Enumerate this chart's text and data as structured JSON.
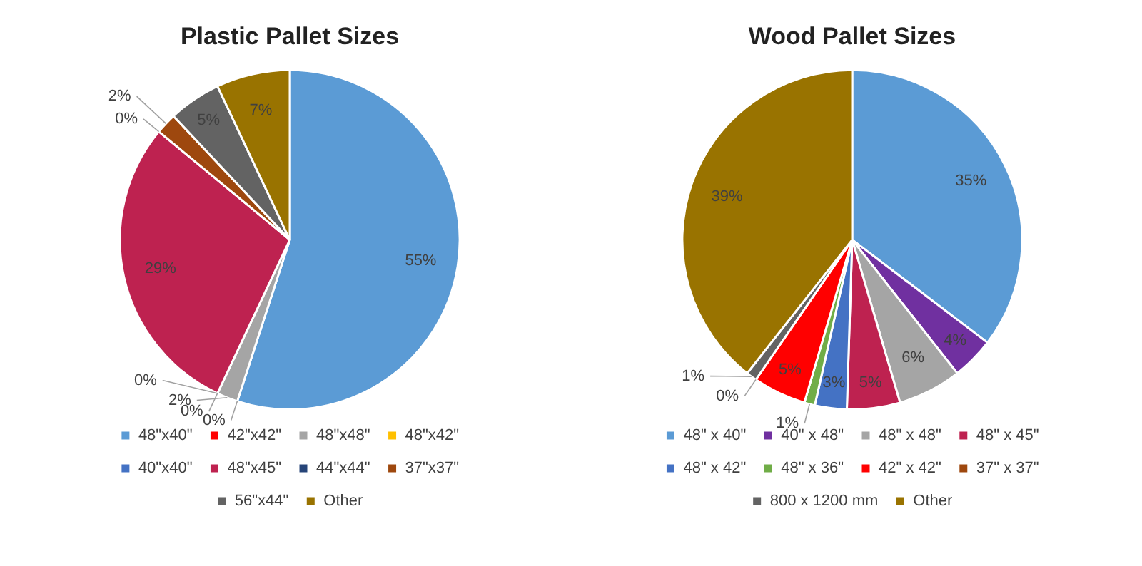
{
  "chart_data": [
    {
      "type": "pie",
      "title": "Plastic Pallet Sizes",
      "categories": [
        "48\"x40\"",
        "42\"x42\"",
        "48\"x48\"",
        "48\"x42\"",
        "40\"x40\"",
        "48\"x45\"",
        "44\"x44\"",
        "37\"x37\"",
        "56\"x44\"",
        "Other"
      ],
      "values": [
        55,
        0,
        2,
        0,
        0,
        29,
        0,
        2,
        5,
        7
      ],
      "value_labels": [
        "55%",
        "0%",
        "2%",
        "0%",
        "0%",
        "29%",
        "0%",
        "2%",
        "5%",
        "7%"
      ],
      "colors": [
        "#5b9bd5",
        "#ff0000",
        "#a5a5a5",
        "#ffc000",
        "#4472c4",
        "#be2250",
        "#264478",
        "#9e480e",
        "#636363",
        "#997300"
      ],
      "legend": "bottom"
    },
    {
      "type": "pie",
      "title": "Wood Pallet Sizes",
      "categories": [
        "48\" x 40\"",
        "40\" x 48\"",
        "48\" x 48\"",
        "48\" x 45\"",
        "48\" x 42\"",
        "48\" x 36\"",
        "42\" x 42\"",
        "37\" x 37\"",
        "800 x 1200 mm",
        "Other"
      ],
      "values": [
        35,
        4,
        6,
        5,
        3,
        1,
        5,
        0,
        1,
        39
      ],
      "value_labels": [
        "35%",
        "4%",
        "6%",
        "5%",
        "3%",
        "1%",
        "5%",
        "0%",
        "1%",
        "39%"
      ],
      "colors": [
        "#5b9bd5",
        "#7030a0",
        "#a5a5a5",
        "#be2250",
        "#4472c4",
        "#70ad47",
        "#ff0000",
        "#9e480e",
        "#636363",
        "#997300"
      ],
      "legend": "bottom"
    }
  ]
}
